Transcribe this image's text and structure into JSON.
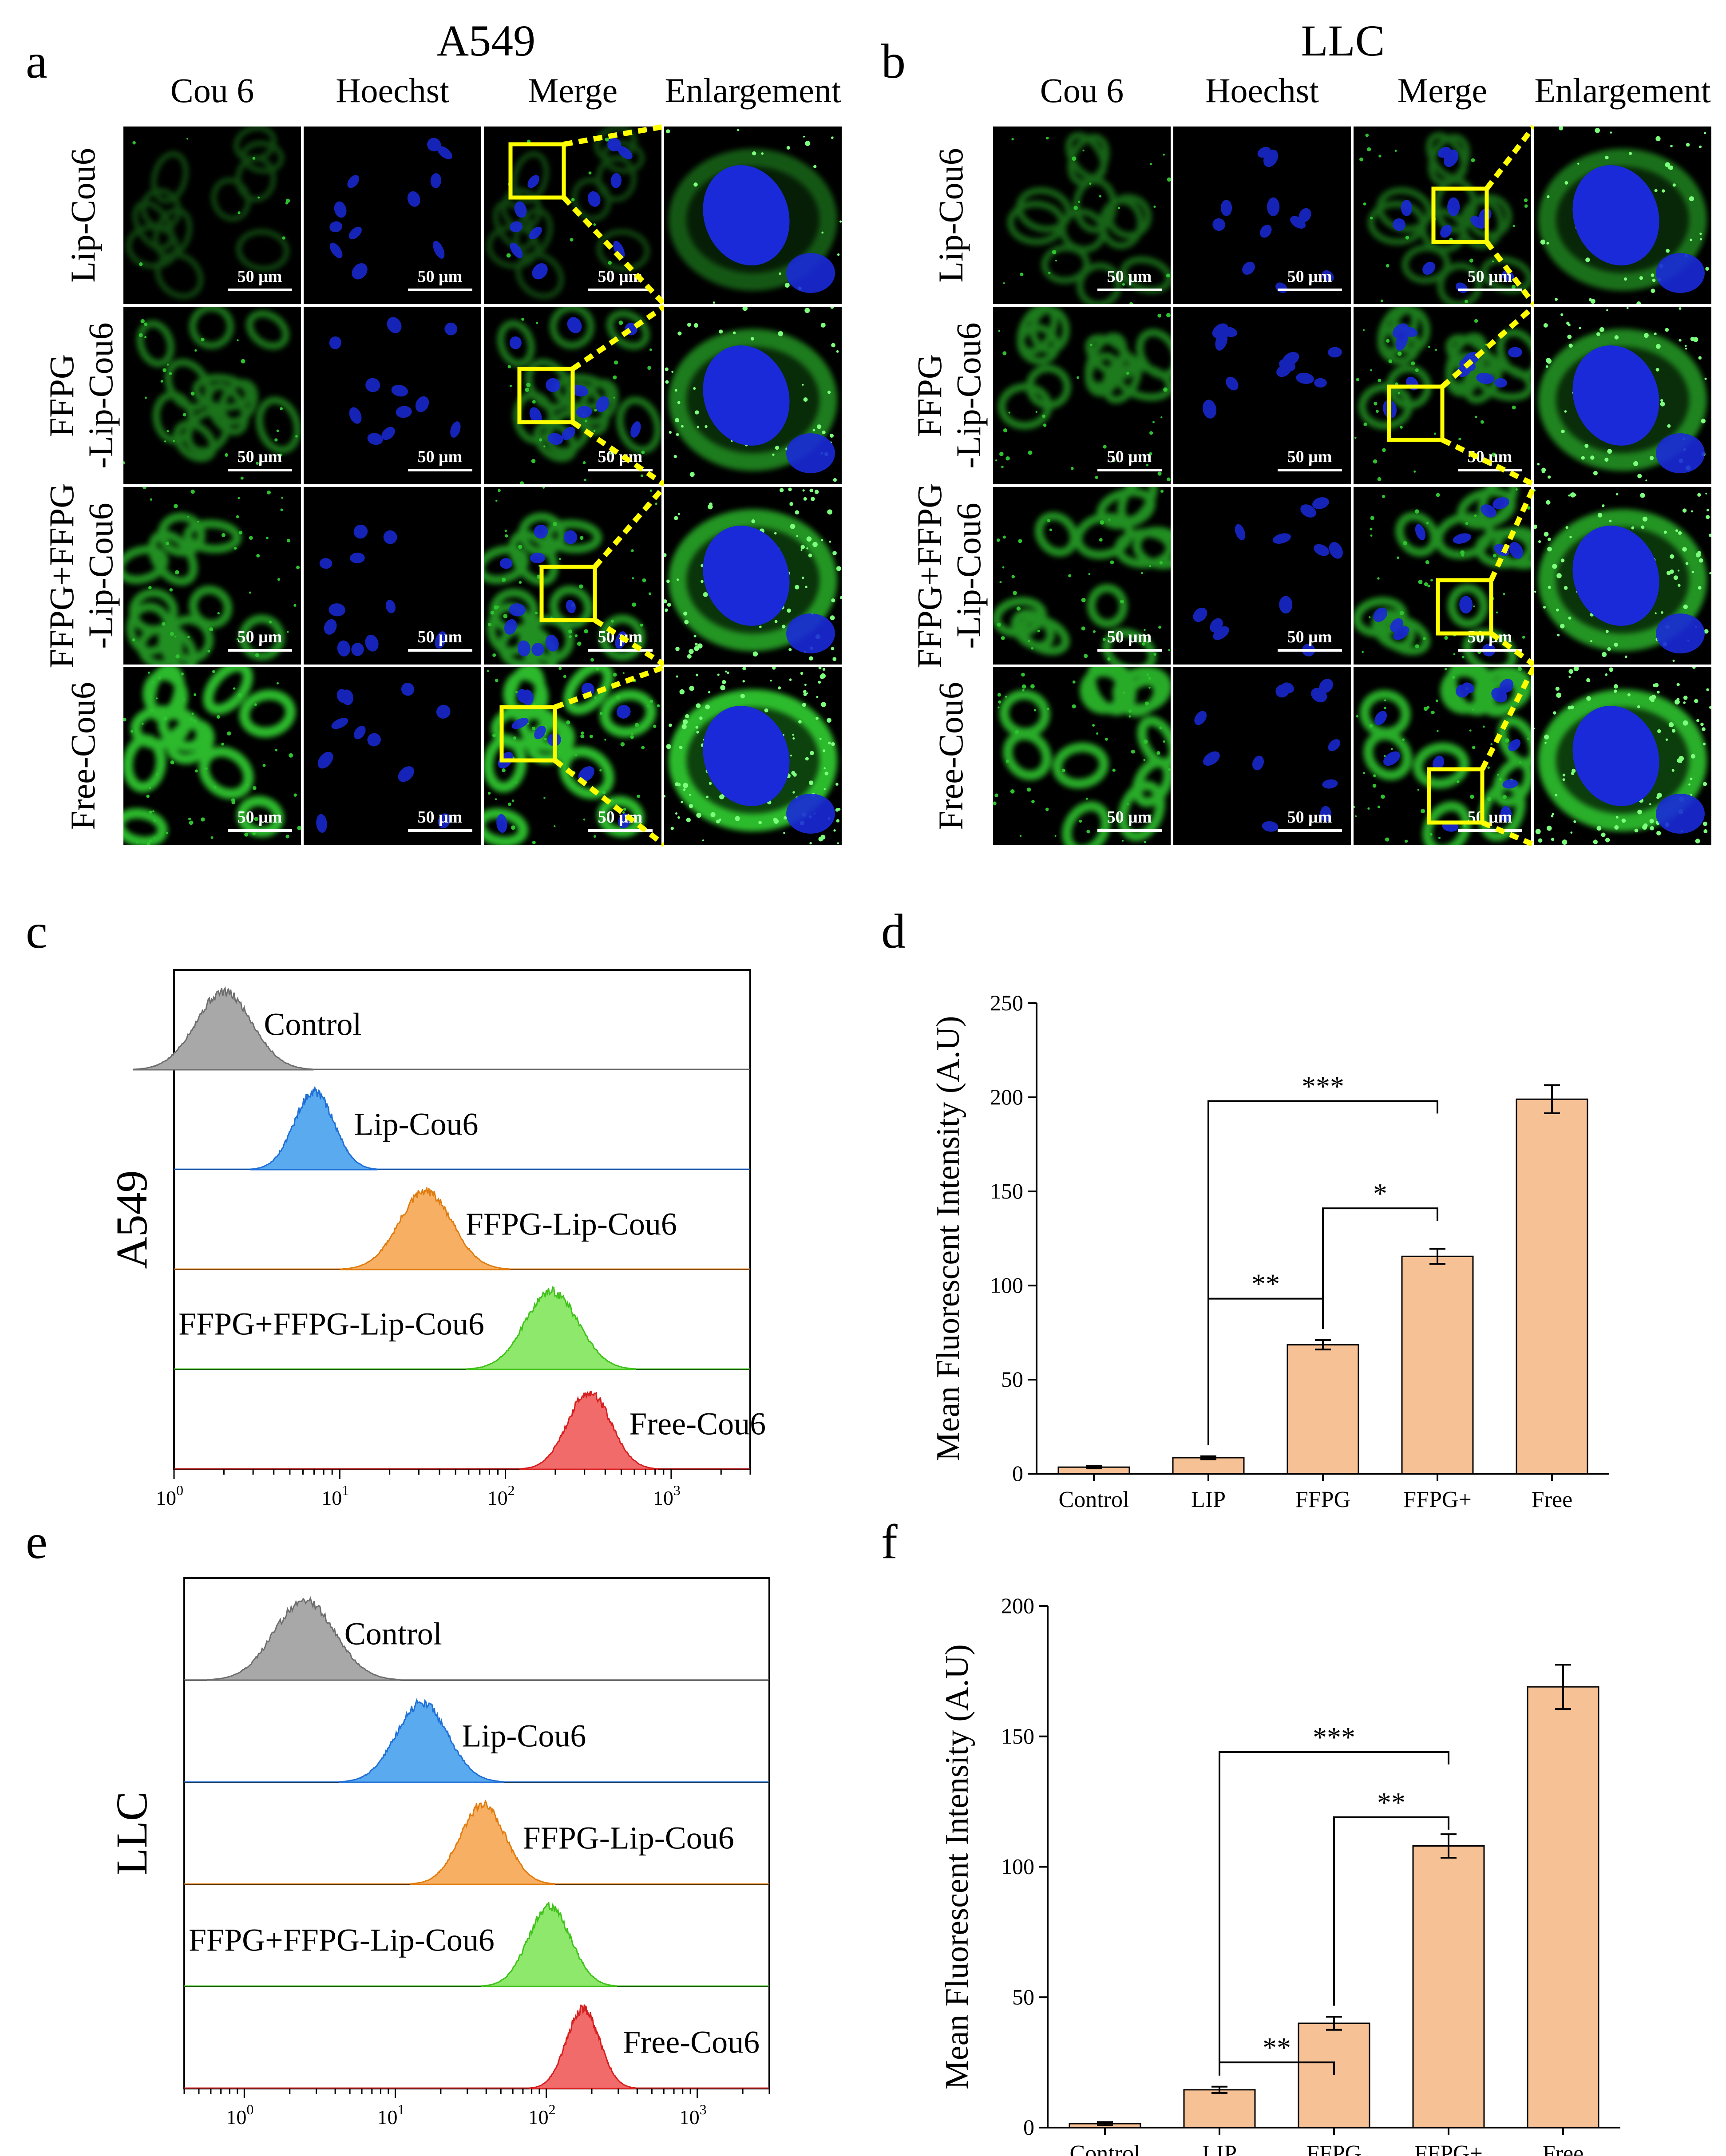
{
  "panel_letters": {
    "a": "a",
    "b": "b",
    "c": "c",
    "d": "d",
    "e": "e",
    "f": "f"
  },
  "micrographs": [
    {
      "cell_line": "A549",
      "columns": [
        "Cou 6",
        "Hoechst",
        "Merge",
        "Enlargement"
      ],
      "rows": [
        {
          "line1": "Lip-Cou6",
          "line2": ""
        },
        {
          "line1": "FFPG",
          "line2": "-Lip-Cou6"
        },
        {
          "line1": "FFPG+FFPG",
          "line2": "-Lip-Cou6"
        },
        {
          "line1": "Free-Cou6",
          "line2": ""
        }
      ],
      "scale_bar": "50 μm",
      "green_level": [
        0.15,
        0.45,
        0.65,
        0.95
      ]
    },
    {
      "cell_line": "LLC",
      "columns": [
        "Cou 6",
        "Hoechst",
        "Merge",
        "Enlargement"
      ],
      "rows": [
        {
          "line1": "Lip-Cou6",
          "line2": ""
        },
        {
          "line1": "FFPG",
          "line2": "-Lip-Cou6"
        },
        {
          "line1": "FFPG+FFPG",
          "line2": "-Lip-Cou6"
        },
        {
          "line1": "Free-Cou6",
          "line2": ""
        }
      ],
      "scale_bar": "50 μm",
      "green_level": [
        0.35,
        0.5,
        0.65,
        0.85
      ]
    }
  ],
  "colors": {
    "nucleus": "#1a2ad8",
    "cou6": "#2fc22f",
    "highlight": "#ffff00",
    "bar_fill": "#f7c196",
    "bar_edge": "#000000"
  },
  "chart_data": [
    {
      "panel": "c",
      "type": "histogram-overlay",
      "ylabel": "A549",
      "x_scale": "log",
      "xlim": [
        1,
        3000
      ],
      "xticks": [
        {
          "v": 1,
          "base": "10",
          "exp": "0"
        },
        {
          "v": 10,
          "base": "10",
          "exp": "1"
        },
        {
          "v": 100,
          "base": "10",
          "exp": "2"
        },
        {
          "v": 1000,
          "base": "10",
          "exp": "3"
        }
      ],
      "series": [
        {
          "name": "Control",
          "peak": 2.0,
          "width": 0.17,
          "color": "#a8a8a8",
          "edge": "#6e6e6e"
        },
        {
          "name": "Lip-Cou6",
          "peak": 7.0,
          "width": 0.12,
          "color": "#5aaaf0",
          "edge": "#1f6fd6"
        },
        {
          "name": "FFPG-Lip-Cou6",
          "peak": 33,
          "width": 0.16,
          "color": "#f7b063",
          "edge": "#e07c10"
        },
        {
          "name": "FFPG+FFPG-Lip-Cou6",
          "peak": 190,
          "width": 0.16,
          "color": "#8de86b",
          "edge": "#41c21b"
        },
        {
          "name": "Free-Cou6",
          "peak": 320,
          "width": 0.13,
          "color": "#f26b6b",
          "edge": "#d61f1f"
        }
      ]
    },
    {
      "panel": "d",
      "type": "bar",
      "ylabel": "Mean Fluorescent Intensity (A.U)",
      "categories": [
        "Control",
        "LIP",
        "FFPG",
        "FFPG+",
        "Free"
      ],
      "values": [
        3.5,
        8.5,
        68.5,
        115.5,
        199
      ],
      "errors": [
        0.6,
        0.8,
        2.5,
        4,
        7.5
      ],
      "ylim": [
        0,
        250
      ],
      "yticks": [
        0,
        50,
        100,
        150,
        200,
        250
      ],
      "significance": [
        {
          "from": 1,
          "to": 2,
          "label": "**",
          "level": 93
        },
        {
          "from": 2,
          "to": 3,
          "label": "*",
          "level": 141
        },
        {
          "from": 1,
          "to": 3,
          "label": "***",
          "level": 198
        }
      ]
    },
    {
      "panel": "e",
      "type": "histogram-overlay",
      "ylabel": "LLC",
      "x_scale": "log",
      "xlim": [
        0.4,
        3000
      ],
      "xticks": [
        {
          "v": 1,
          "base": "10",
          "exp": "0"
        },
        {
          "v": 10,
          "base": "10",
          "exp": "1"
        },
        {
          "v": 100,
          "base": "10",
          "exp": "2"
        },
        {
          "v": 1000,
          "base": "10",
          "exp": "3"
        }
      ],
      "series": [
        {
          "name": "Control",
          "peak": 2.5,
          "width": 0.2,
          "color": "#a8a8a8",
          "edge": "#6e6e6e"
        },
        {
          "name": "Lip-Cou6",
          "peak": 15,
          "width": 0.17,
          "color": "#5aaaf0",
          "edge": "#1f6fd6"
        },
        {
          "name": "FFPG-Lip-Cou6",
          "peak": 38,
          "width": 0.15,
          "color": "#f7b063",
          "edge": "#e07c10"
        },
        {
          "name": "FFPG+FFPG-Lip-Cou6",
          "peak": 105,
          "width": 0.14,
          "color": "#8de86b",
          "edge": "#41c21b"
        },
        {
          "name": "Free-Cou6",
          "peak": 175,
          "width": 0.11,
          "color": "#f26b6b",
          "edge": "#d61f1f"
        }
      ]
    },
    {
      "panel": "f",
      "type": "bar",
      "ylabel": "Mean Fluorescent Intensity (A.U)",
      "categories": [
        "Control",
        "LIP",
        "FFPG",
        "FFPG+",
        "Free"
      ],
      "values": [
        1.5,
        14.5,
        40,
        108,
        169
      ],
      "errors": [
        0.6,
        1.2,
        2.5,
        4.5,
        8.5
      ],
      "ylim": [
        0,
        200
      ],
      "yticks": [
        0,
        50,
        100,
        150,
        200
      ],
      "significance": [
        {
          "from": 1,
          "to": 2,
          "label": "**",
          "level": 25
        },
        {
          "from": 2,
          "to": 3,
          "label": "**",
          "level": 119
        },
        {
          "from": 1,
          "to": 3,
          "label": "***",
          "level": 144
        }
      ]
    }
  ]
}
